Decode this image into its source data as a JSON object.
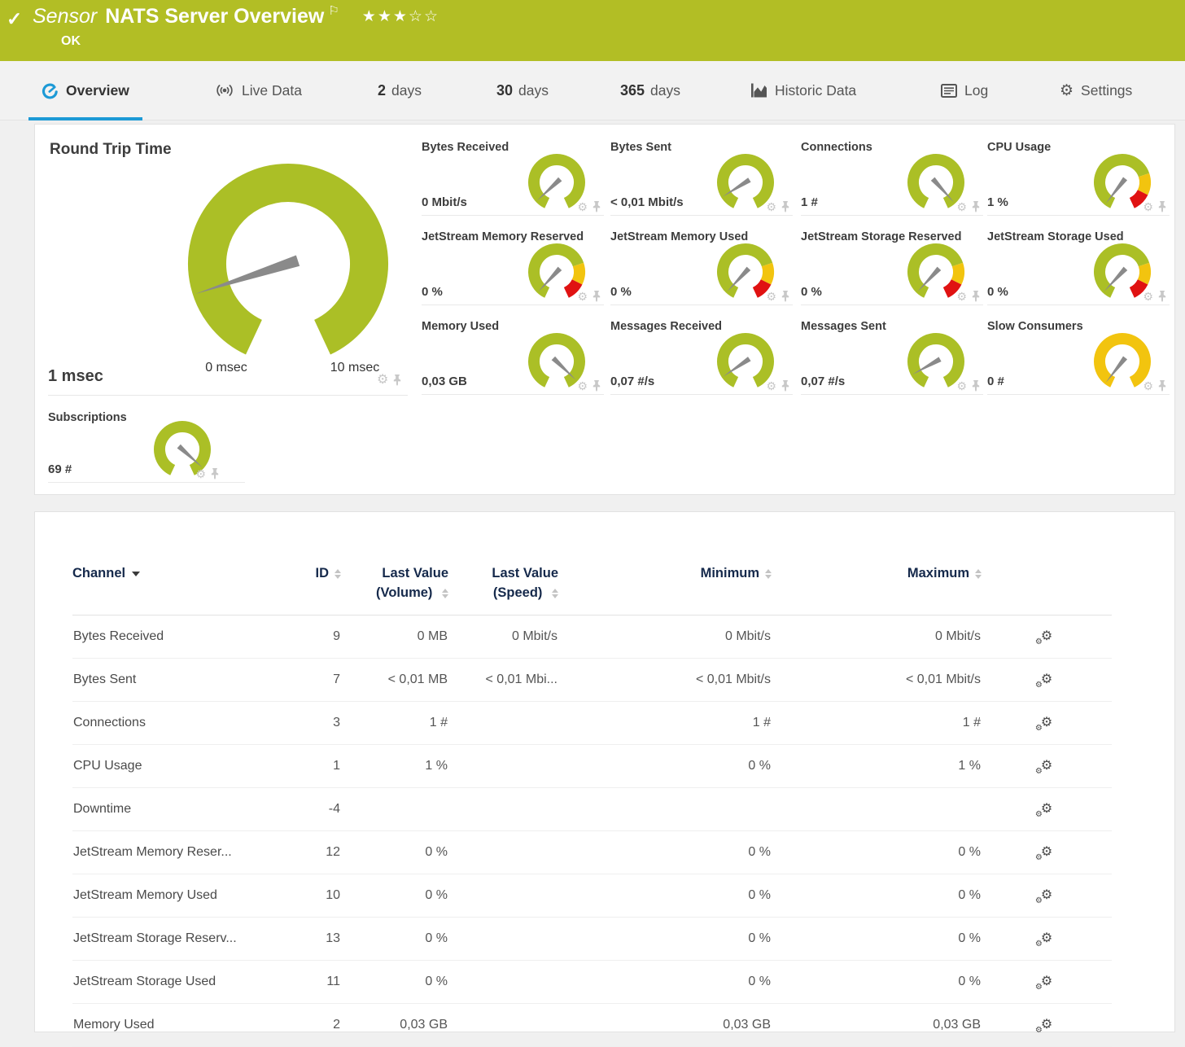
{
  "colors": {
    "brand_green": "#b2be25",
    "gauge_green": "#abbf26",
    "gauge_yellow": "#f2c40f",
    "gauge_red": "#e01212",
    "tab_blue": "#1d9ad6",
    "needle_gray": "#8a8a8a"
  },
  "header": {
    "check_icon": "✓",
    "sensor_label": "Sensor",
    "title": "NATS Server Overview",
    "flag_icon": "⚐",
    "stars_filled": "★★★",
    "stars_empty": "☆☆",
    "status": "OK"
  },
  "tabs": [
    {
      "label": "Overview",
      "icon": "gauge-icon",
      "active": true
    },
    {
      "label": "Live Data",
      "icon": "live-data-icon"
    },
    {
      "number": "2",
      "label": "days"
    },
    {
      "number": "30",
      "label": "days"
    },
    {
      "number": "365",
      "label": "days"
    },
    {
      "label": "Historic Data",
      "icon": "historic-chart-icon"
    },
    {
      "label": "Log",
      "icon": "log-icon"
    },
    {
      "label": "Settings",
      "icon": "settings-gear-icon"
    }
  ],
  "overview": {
    "main_gauge": {
      "title": "Round Trip Time",
      "value": "1 msec",
      "scale_min": "0 msec",
      "scale_max": "10 msec",
      "style": "green",
      "needle_deg": 162
    },
    "small_gauges": [
      {
        "title": "Bytes Received",
        "value": "0 Mbit/s",
        "style": "green",
        "needle_deg": 137
      },
      {
        "title": "Bytes Sent",
        "value": "< 0,01 Mbit/s",
        "style": "green",
        "needle_deg": 148
      },
      {
        "title": "Connections",
        "value": "1 #",
        "style": "green",
        "needle_deg": 48
      },
      {
        "title": "CPU Usage",
        "value": "1 %",
        "style": "warn",
        "needle_deg": 128
      },
      {
        "title": "JetStream Memory Reserved",
        "value": "0 %",
        "style": "warn",
        "needle_deg": 133
      },
      {
        "title": "JetStream Memory Used",
        "value": "0 %",
        "style": "warn",
        "needle_deg": 133
      },
      {
        "title": "JetStream Storage Reserved",
        "value": "0 %",
        "style": "warn",
        "needle_deg": 133
      },
      {
        "title": "JetStream Storage Used",
        "value": "0 %",
        "style": "warn",
        "needle_deg": 133
      },
      {
        "title": "Memory Used",
        "value": "0,03 GB",
        "style": "green",
        "needle_deg": 44
      },
      {
        "title": "Messages Received",
        "value": "0,07 #/s",
        "style": "green",
        "needle_deg": 146
      },
      {
        "title": "Messages Sent",
        "value": "0,07 #/s",
        "style": "green",
        "needle_deg": 151
      },
      {
        "title": "Slow Consumers",
        "value": "0 #",
        "style": "yellow",
        "needle_deg": 128
      }
    ],
    "subscriptions_gauge": {
      "title": "Subscriptions",
      "value": "69 #",
      "style": "green",
      "needle_deg": 42
    }
  },
  "table": {
    "headers": {
      "channel": "Channel",
      "id": "ID",
      "volume_line1": "Last Value",
      "volume_line2": "(Volume)",
      "speed_line1": "Last Value",
      "speed_line2": "(Speed)",
      "min": "Minimum",
      "max": "Maximum"
    },
    "rows": [
      {
        "channel": "Bytes Received",
        "id": "9",
        "volume": "0 MB",
        "speed": "0 Mbit/s",
        "min": "0 Mbit/s",
        "max": "0 Mbit/s"
      },
      {
        "channel": "Bytes Sent",
        "id": "7",
        "volume": "< 0,01 MB",
        "speed": "< 0,01 Mbi...",
        "min": "< 0,01 Mbit/s",
        "max": "< 0,01 Mbit/s"
      },
      {
        "channel": "Connections",
        "id": "3",
        "volume": "1 #",
        "speed": "",
        "min": "1 #",
        "max": "1 #"
      },
      {
        "channel": "CPU Usage",
        "id": "1",
        "volume": "1 %",
        "speed": "",
        "min": "0 %",
        "max": "1 %"
      },
      {
        "channel": "Downtime",
        "id": "-4",
        "volume": "",
        "speed": "",
        "min": "",
        "max": ""
      },
      {
        "channel": "JetStream Memory Reser...",
        "id": "12",
        "volume": "0 %",
        "speed": "",
        "min": "0 %",
        "max": "0 %"
      },
      {
        "channel": "JetStream Memory Used",
        "id": "10",
        "volume": "0 %",
        "speed": "",
        "min": "0 %",
        "max": "0 %"
      },
      {
        "channel": "JetStream Storage Reserv...",
        "id": "13",
        "volume": "0 %",
        "speed": "",
        "min": "0 %",
        "max": "0 %"
      },
      {
        "channel": "JetStream Storage Used",
        "id": "11",
        "volume": "0 %",
        "speed": "",
        "min": "0 %",
        "max": "0 %"
      },
      {
        "channel": "Memory Used",
        "id": "2",
        "volume": "0,03 GB",
        "speed": "",
        "min": "0,03 GB",
        "max": "0,03 GB"
      }
    ]
  }
}
